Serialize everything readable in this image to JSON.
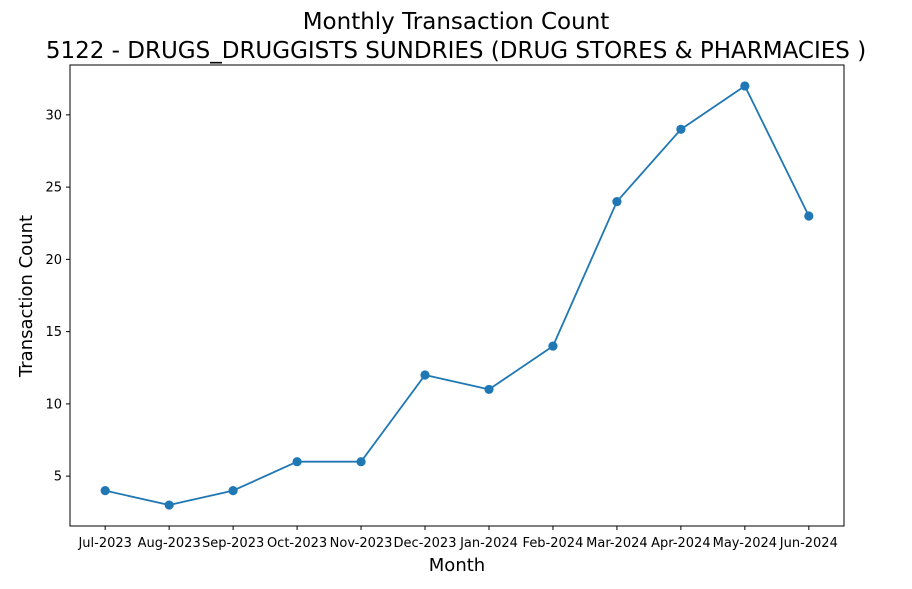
{
  "chart_data": {
    "type": "line",
    "title": "Monthly Transaction Count",
    "subtitle": "5122 - DRUGS_DRUGGISTS SUNDRIES (DRUG STORES & PHARMACIES )",
    "xlabel": "Month",
    "ylabel": "Transaction Count",
    "categories": [
      "Jul-2023",
      "Aug-2023",
      "Sep-2023",
      "Oct-2023",
      "Nov-2023",
      "Dec-2023",
      "Jan-2024",
      "Feb-2024",
      "Mar-2024",
      "Apr-2024",
      "May-2024",
      "Jun-2024"
    ],
    "values": [
      4,
      3,
      4,
      6,
      6,
      12,
      11,
      14,
      24,
      29,
      32,
      23
    ],
    "ylim": [
      1.55,
      33.45
    ],
    "yticks": [
      5,
      10,
      15,
      20,
      25,
      30
    ],
    "grid": false,
    "line_color": "#1f77b4",
    "marker": "circle"
  }
}
